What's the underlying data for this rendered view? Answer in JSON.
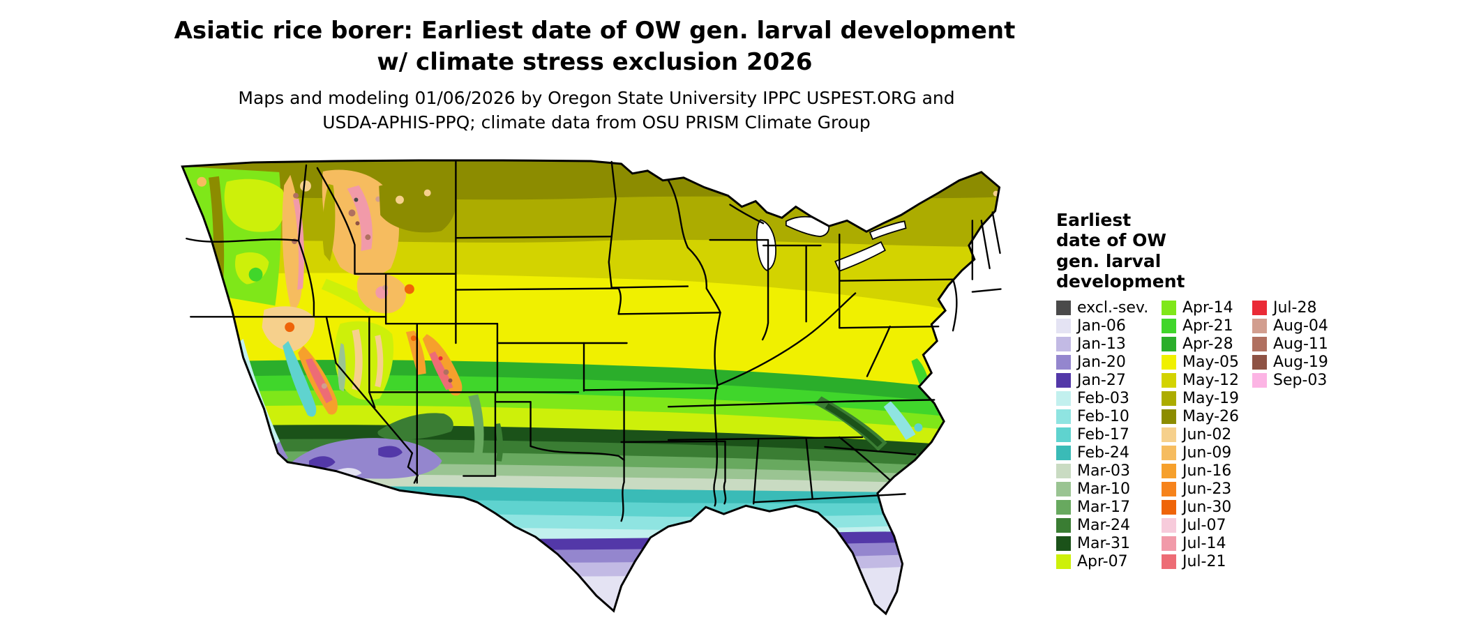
{
  "title": {
    "line1": "Asiatic rice borer: Earliest date of OW gen. larval development",
    "line2": "w/ climate stress exclusion 2026"
  },
  "subtitle": {
    "line1": "Maps and modeling 01/06/2026 by Oregon State University IPPC USPEST.ORG and",
    "line2": "USDA-APHIS-PPQ; climate data from OSU PRISM Climate Group"
  },
  "map": {
    "name": "continental-us-earliest-date-choropleth",
    "outline_color": "#000000",
    "water_color": "#ffffff"
  },
  "legend": {
    "title_lines": [
      "Earliest",
      "date of OW",
      "gen. larval",
      "development"
    ],
    "columns": [
      [
        {
          "label": "excl.-sev.",
          "color": "#4a4a4a"
        },
        {
          "label": "Jan-06",
          "color": "#e4e3f3"
        },
        {
          "label": "Jan-13",
          "color": "#c2bae4"
        },
        {
          "label": "Jan-20",
          "color": "#9486ce"
        },
        {
          "label": "Jan-27",
          "color": "#5338a8"
        },
        {
          "label": "Feb-03",
          "color": "#c2f0ee"
        },
        {
          "label": "Feb-10",
          "color": "#8fe4e1"
        },
        {
          "label": "Feb-17",
          "color": "#5fd3cf"
        },
        {
          "label": "Feb-24",
          "color": "#3abbb7"
        },
        {
          "label": "Mar-03",
          "color": "#c9dbc2"
        },
        {
          "label": "Mar-10",
          "color": "#9ac492"
        },
        {
          "label": "Mar-17",
          "color": "#68a95f"
        },
        {
          "label": "Mar-24",
          "color": "#3a7d33"
        },
        {
          "label": "Mar-31",
          "color": "#1b5219"
        },
        {
          "label": "Apr-07",
          "color": "#cdf00a"
        }
      ],
      [
        {
          "label": "Apr-14",
          "color": "#7fe719"
        },
        {
          "label": "Apr-21",
          "color": "#40d62b"
        },
        {
          "label": "Apr-28",
          "color": "#2bae2b"
        },
        {
          "label": "May-05",
          "color": "#f0f000"
        },
        {
          "label": "May-12",
          "color": "#d3d300"
        },
        {
          "label": "May-19",
          "color": "#acac00"
        },
        {
          "label": "May-26",
          "color": "#8c8c00"
        },
        {
          "label": "Jun-02",
          "color": "#f6d08c"
        },
        {
          "label": "Jun-09",
          "color": "#f6bc5f"
        },
        {
          "label": "Jun-16",
          "color": "#f6a02c"
        },
        {
          "label": "Jun-23",
          "color": "#f6831c"
        },
        {
          "label": "Jun-30",
          "color": "#ef6408"
        },
        {
          "label": "Jul-07",
          "color": "#f7cbdb"
        },
        {
          "label": "Jul-14",
          "color": "#f19aa9"
        },
        {
          "label": "Jul-21",
          "color": "#ed6c75"
        }
      ],
      [
        {
          "label": "Jul-28",
          "color": "#ea2a36"
        },
        {
          "label": "Aug-04",
          "color": "#d29e8f"
        },
        {
          "label": "Aug-11",
          "color": "#b07060"
        },
        {
          "label": "Aug-19",
          "color": "#8e5244"
        },
        {
          "label": "Sep-03",
          "color": "#fcb4e4"
        }
      ]
    ]
  }
}
